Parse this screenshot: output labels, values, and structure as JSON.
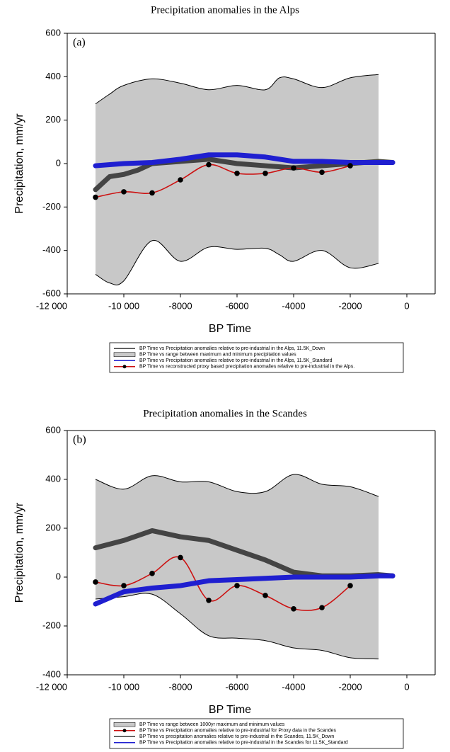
{
  "chart_data": [
    {
      "type": "line",
      "title": "Precipitation anomalies in the Alps",
      "panel_label": "(a)",
      "xlabel": "BP Time",
      "ylabel": "Precipitation, mm/yr",
      "xlim": [
        -12000,
        1000
      ],
      "xticks": [
        {
          "value": -12000,
          "label": "-12 000"
        },
        {
          "value": -10000,
          "label": "-10 000"
        },
        -8000,
        -6000,
        -4000,
        -2000,
        0
      ],
      "ylim": [
        -600,
        600
      ],
      "yticks": [
        -600,
        -400,
        -200,
        0,
        200,
        400,
        600
      ],
      "series": [
        {
          "name": "BP Time vs Precipitation anomalies relative to pre-industrial in the Alps, 11.5K_Down",
          "color": "#444444",
          "x": [
            -11000,
            -10500,
            -10000,
            -9500,
            -9000,
            -8000,
            -7000,
            -6000,
            -5000,
            -4000,
            -3000,
            -2000,
            -1000,
            -500
          ],
          "values": [
            -120,
            -60,
            -50,
            -30,
            0,
            10,
            20,
            0,
            -10,
            -20,
            -10,
            0,
            10,
            5
          ]
        },
        {
          "name": "BP Time vs range between maximum and minimum precipitation values",
          "color": "#c8c8c8",
          "band": true,
          "x": [
            -11000,
            -10500,
            -10000,
            -9000,
            -8000,
            -7000,
            -6000,
            -5000,
            -4500,
            -4000,
            -3000,
            -2000,
            -1000
          ],
          "high": [
            275,
            320,
            360,
            390,
            370,
            340,
            360,
            340,
            395,
            390,
            350,
            395,
            410
          ],
          "low": [
            -510,
            -550,
            -540,
            -355,
            -450,
            -385,
            -395,
            -390,
            -420,
            -450,
            -400,
            -480,
            -460
          ]
        },
        {
          "name": "BP Time vs Precipitation anomalies relative to pre-industrial in the Alps, 11.5K_Standard",
          "color": "#1f1fd0",
          "x": [
            -11000,
            -10000,
            -9000,
            -8000,
            -7000,
            -6000,
            -5000,
            -4000,
            -3000,
            -2000,
            -1000,
            -500
          ],
          "values": [
            -10,
            0,
            5,
            20,
            40,
            40,
            30,
            10,
            10,
            5,
            5,
            5
          ]
        },
        {
          "name": "BP Time vs reconstructed proxy based precipitation anomalies relative to pre-industrial in the Alps.",
          "color": "#cc1111",
          "marker": "circle",
          "x": [
            -11000,
            -10000,
            -9000,
            -8000,
            -7000,
            -6000,
            -5000,
            -4000,
            -3000,
            -2000
          ],
          "values": [
            -155,
            -130,
            -135,
            -75,
            -5,
            -45,
            -45,
            -20,
            -40,
            -10
          ]
        }
      ]
    },
    {
      "type": "line",
      "title": "Precipitation anomalies in the Scandes",
      "panel_label": "(b)",
      "xlabel": "BP Time",
      "ylabel": "Precipitation, mm/yr",
      "xlim": [
        -12000,
        1000
      ],
      "xticks": [
        {
          "value": -12000,
          "label": "-12 000"
        },
        {
          "value": -10000,
          "label": "-10 000"
        },
        -8000,
        -6000,
        -4000,
        -2000,
        0
      ],
      "ylim": [
        -400,
        600
      ],
      "yticks": [
        -400,
        -200,
        0,
        200,
        400,
        600
      ],
      "series": [
        {
          "name": "BP Time vs range between 1000yr maximum and minimum values",
          "color": "#c8c8c8",
          "band": true,
          "x": [
            -11000,
            -10000,
            -9000,
            -8000,
            -7000,
            -6000,
            -5000,
            -4000,
            -3000,
            -2000,
            -1000
          ],
          "high": [
            400,
            360,
            415,
            390,
            390,
            350,
            350,
            420,
            380,
            370,
            330
          ],
          "low": [
            -90,
            -80,
            -70,
            -150,
            -240,
            -250,
            -260,
            -290,
            -300,
            -330,
            -335
          ]
        },
        {
          "name": "BP Time vs Precipitation anomalies relative to pre-industrial for Proxy data in the Scandes",
          "color": "#cc1111",
          "marker": "circle",
          "x": [
            -11000,
            -10000,
            -9000,
            -8000,
            -7000,
            -6000,
            -5000,
            -4000,
            -3000,
            -2000
          ],
          "values": [
            -20,
            -35,
            15,
            80,
            -95,
            -35,
            -75,
            -130,
            -125,
            -35
          ]
        },
        {
          "name": "BP Time vs precipitation anomalies relative to pre-industrial in the Scandes, 11.5K_Down",
          "color": "#444444",
          "x": [
            -11000,
            -10000,
            -9000,
            -8000,
            -7000,
            -6000,
            -5000,
            -4000,
            -3000,
            -2000,
            -1000,
            -500
          ],
          "values": [
            120,
            150,
            190,
            165,
            150,
            110,
            70,
            20,
            5,
            5,
            10,
            5
          ]
        },
        {
          "name": "BP Time vs Precipitation anomalies relative to pre-industrial in the Scandes for 11.5K_Standard",
          "color": "#1f1fd0",
          "x": [
            -11000,
            -10000,
            -9000,
            -8000,
            -7000,
            -6000,
            -5000,
            -4000,
            -3000,
            -2000,
            -1000,
            -500
          ],
          "values": [
            -110,
            -60,
            -45,
            -35,
            -15,
            -10,
            -5,
            0,
            0,
            0,
            5,
            5
          ]
        }
      ]
    }
  ]
}
